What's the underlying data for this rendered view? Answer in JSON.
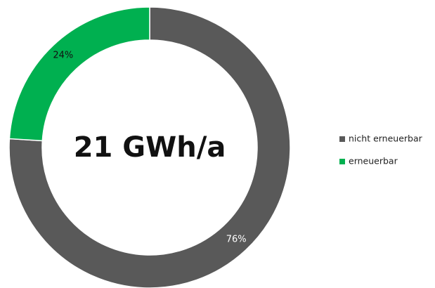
{
  "chart_data": {
    "type": "donut",
    "center_text": "21 GWh/a",
    "categories": [
      "nicht erneuerbar",
      "erneuerbar"
    ],
    "values": [
      76,
      24
    ],
    "value_labels": [
      "76%",
      "24%"
    ],
    "colors": [
      "#595959",
      "#00b050"
    ],
    "label_colors": [
      "#ffffff",
      "#111111"
    ],
    "legend": "right"
  }
}
